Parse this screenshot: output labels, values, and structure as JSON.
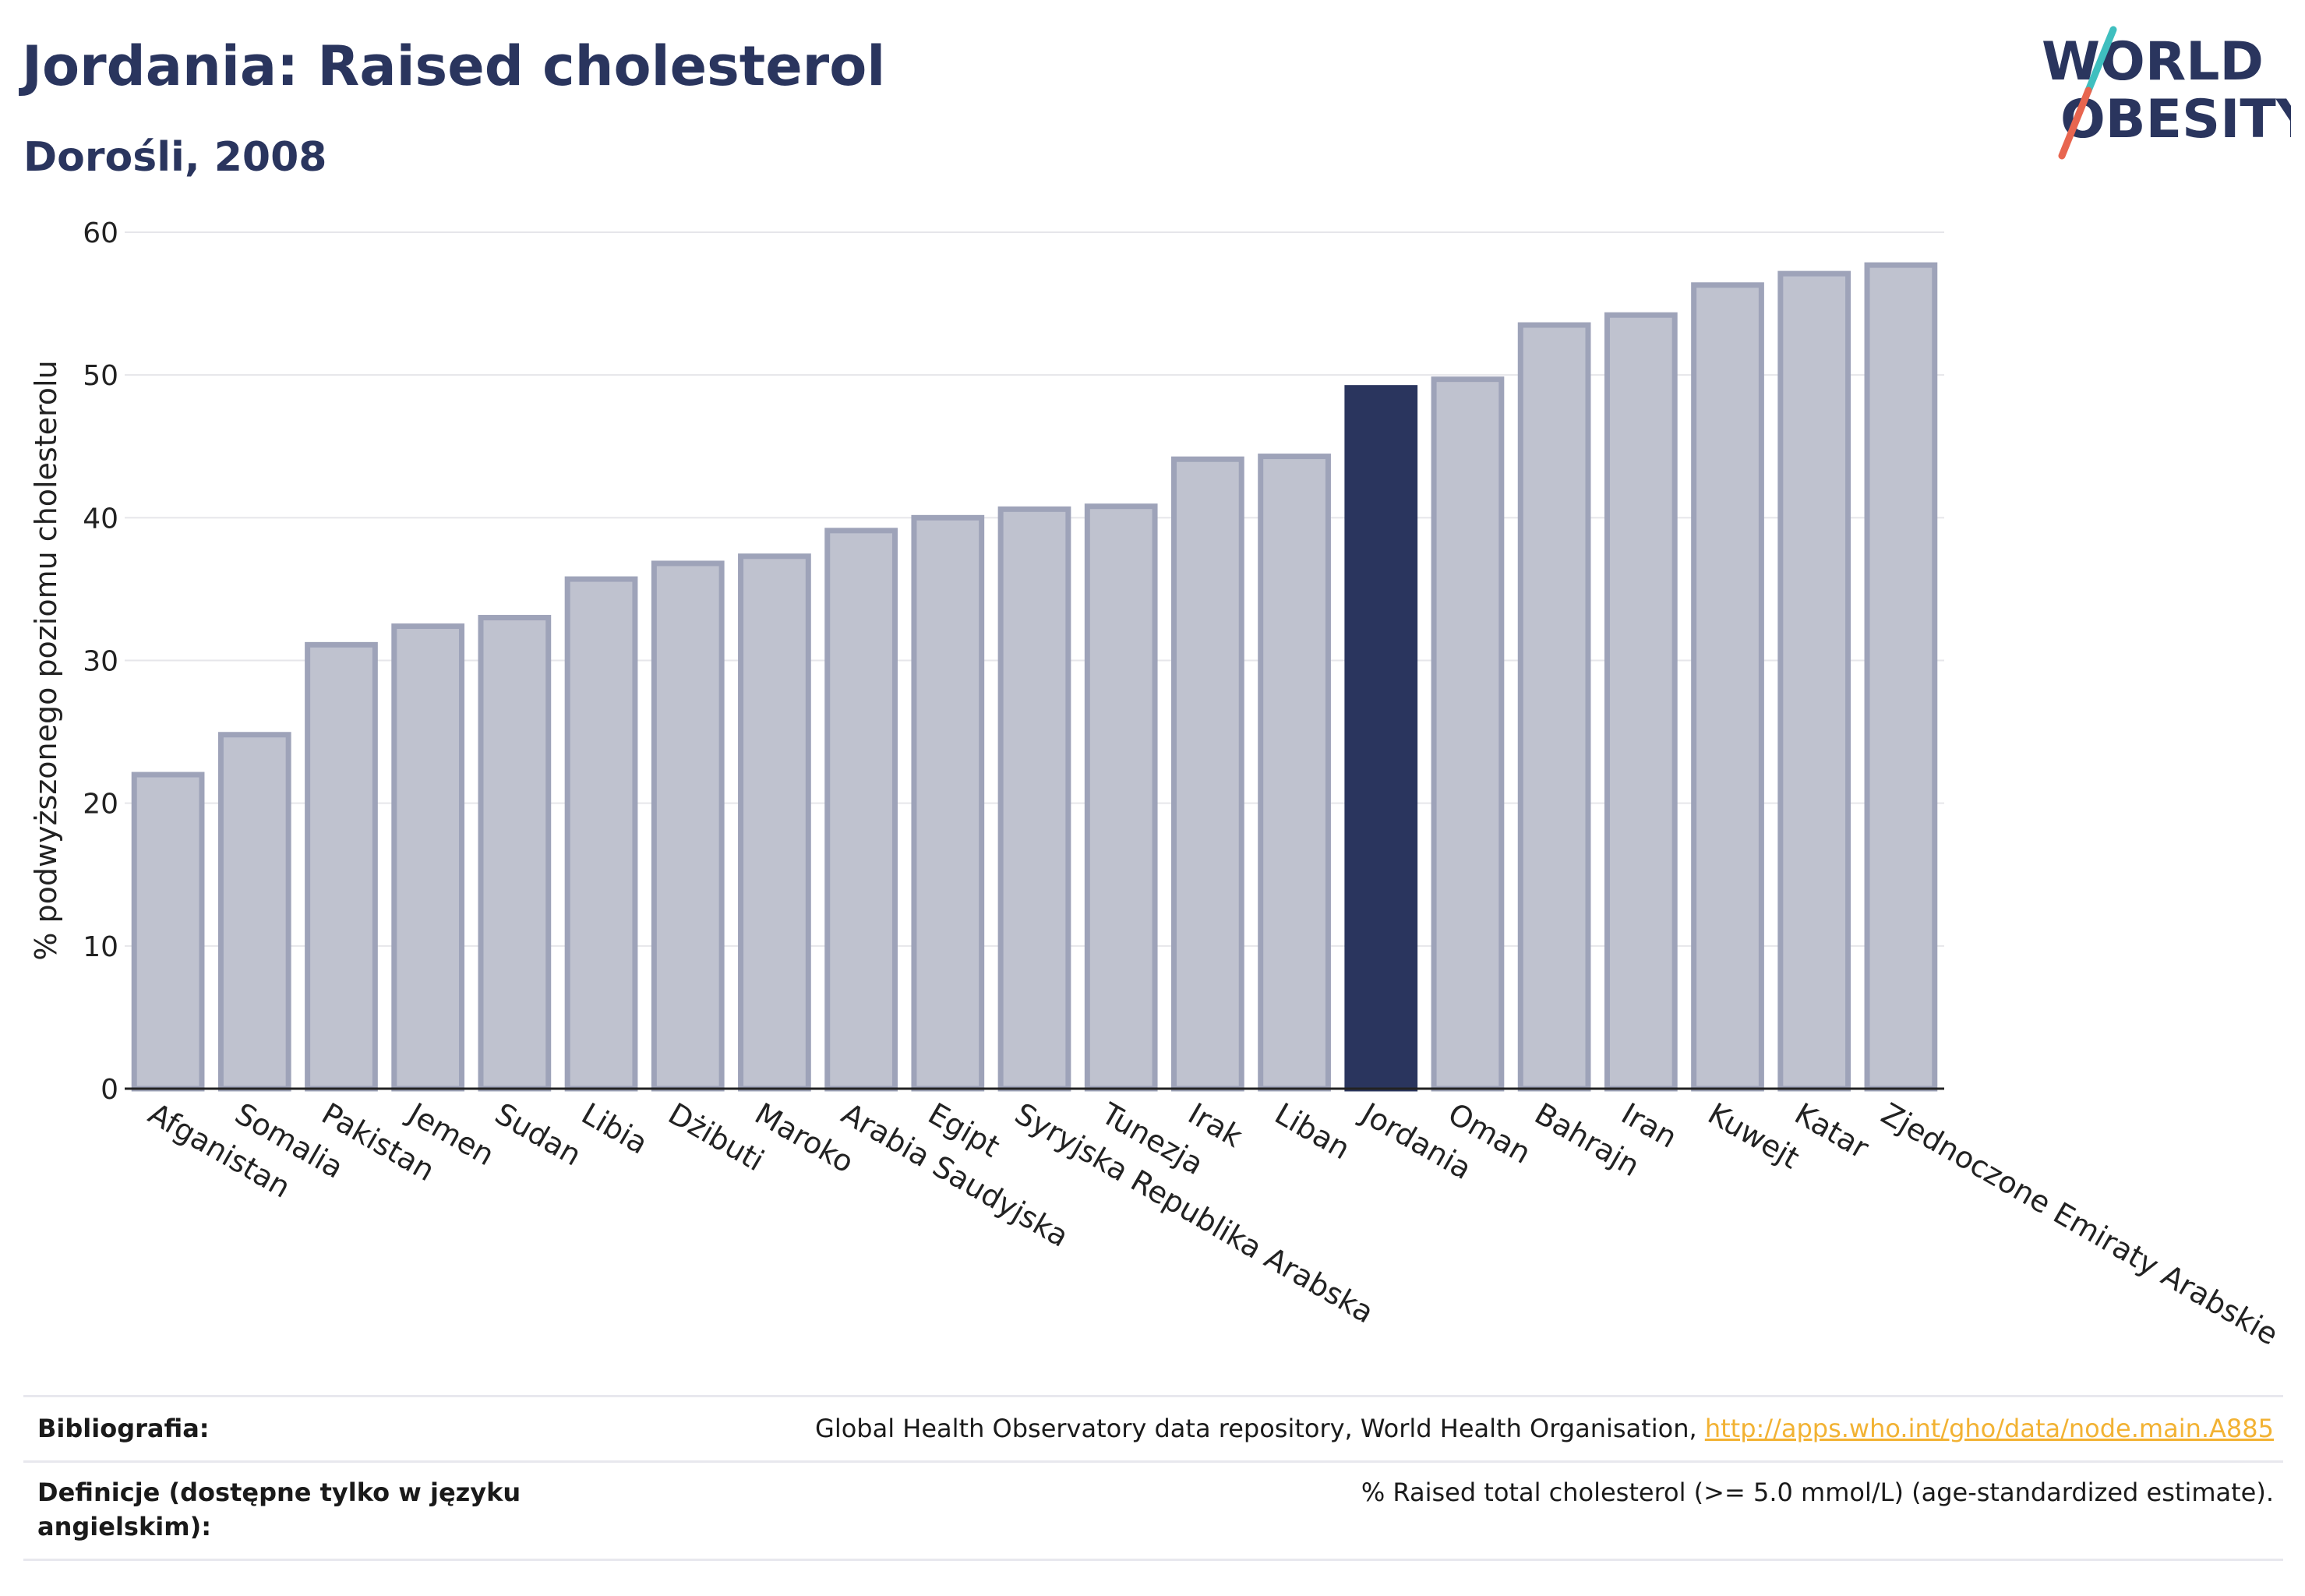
{
  "header": {
    "title": "Jordania: Raised cholesterol",
    "subtitle": "Dorośli, 2008"
  },
  "logo": {
    "line1": "WORLD",
    "line2": "OBESITY",
    "text_color": "#2a355e",
    "slash_color_top": "#3fbfbf",
    "slash_color_bottom": "#e8654f"
  },
  "colors": {
    "bar_default": "#bfc2cf",
    "bar_border": "#9ea3b9",
    "bar_highlight": "#2a355e",
    "grid": "#e6e6ea",
    "axis": "#222222"
  },
  "chart_data": {
    "type": "bar",
    "title": "Jordania: Raised cholesterol",
    "subtitle": "Dorośli, 2008",
    "xlabel": "",
    "ylabel": "% podwyższonego poziomu cholesterolu",
    "ylim": [
      0,
      60
    ],
    "yticks": [
      0,
      10,
      20,
      30,
      40,
      50,
      60
    ],
    "grid": true,
    "highlight": "Jordania",
    "categories": [
      "Afganistan",
      "Somalia",
      "Pakistan",
      "Jemen",
      "Sudan",
      "Libia",
      "Dżibuti",
      "Maroko",
      "Arabia Saudyjska",
      "Egipt",
      "Syryjska Republika Arabska",
      "Tunezja",
      "Irak",
      "Liban",
      "Jordania",
      "Oman",
      "Bahrajn",
      "Iran",
      "Kuwejt",
      "Katar",
      "Zjednoczone Emiraty Arabskie"
    ],
    "values": [
      22.0,
      24.8,
      31.1,
      32.4,
      33.0,
      35.7,
      36.8,
      37.3,
      39.1,
      40.0,
      40.6,
      40.8,
      44.1,
      44.3,
      49.1,
      49.7,
      53.5,
      54.2,
      56.3,
      57.1,
      57.7
    ]
  },
  "footer": {
    "bibliography_label": "Bibliografia:",
    "bibliography_text": "Global Health Observatory data repository, World Health Organisation, ",
    "bibliography_link": "http://apps.who.int/gho/data/node.main.A885",
    "definitions_label": "Definicje (dostępne tylko w języku angielskim):",
    "definitions_text": "% Raised total cholesterol (>= 5.0 mmol/L) (age-standardized estimate)."
  }
}
